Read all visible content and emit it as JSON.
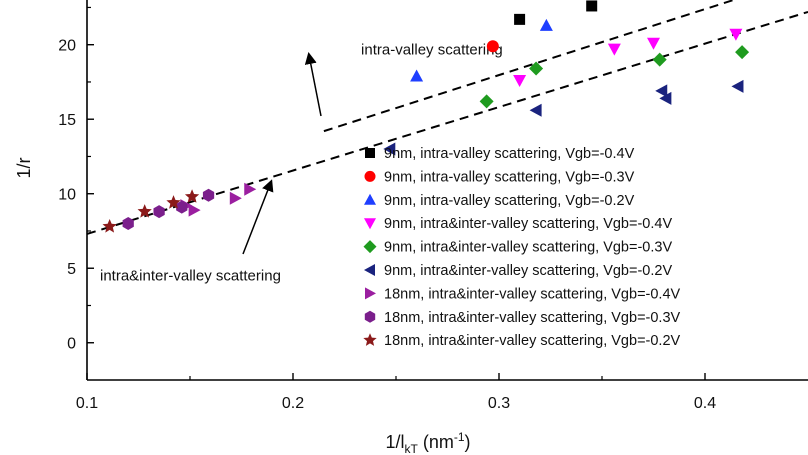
{
  "chart_data": {
    "type": "scatter",
    "xlabel": "1/l",
    "xlabel_sub": "kT",
    "xlabel_unit_open": " (nm",
    "xlabel_unit_sup": "-1",
    "xlabel_unit_close": ")",
    "ylabel": "1/r",
    "xlim": [
      0.1,
      0.45
    ],
    "ylim": [
      -2.5,
      23
    ],
    "x_ticks": [
      0.1,
      0.2,
      0.3,
      0.4
    ],
    "x_tick_labels": [
      "0.1",
      "0.2",
      "0.3",
      "0.4"
    ],
    "y_ticks": [
      0,
      5,
      10,
      15,
      20
    ],
    "y_tick_labels": [
      "0",
      "5",
      "10",
      "15",
      "20"
    ],
    "grid": false,
    "legend_position": "bottom-right",
    "annotations": [
      {
        "text": "intra-valley scattering",
        "x": 0.265,
        "y": 19.6
      },
      {
        "text": "intra&inter-valley scattering",
        "x": 0.155,
        "y": 4.5
      }
    ],
    "series": [
      {
        "name": "9nm, intra-valley scattering, Vgb=-0.4V",
        "marker": "square",
        "color": "#000000",
        "x": [
          0.31,
          0.345
        ],
        "y": [
          21.7,
          22.6
        ]
      },
      {
        "name": "9nm, intra-valley scattering, Vgb=-0.3V",
        "marker": "circle",
        "color": "#ff0000",
        "x": [
          0.297
        ],
        "y": [
          19.9
        ]
      },
      {
        "name": "9nm, intra-valley scattering, Vgb=-0.2V",
        "marker": "triangle-up",
        "color": "#1f3fff",
        "x": [
          0.26,
          0.323
        ],
        "y": [
          17.9,
          21.3
        ]
      },
      {
        "name": "9nm, intra&inter-valley scattering, Vgb=-0.4V",
        "marker": "triangle-down",
        "color": "#ff00ff",
        "x": [
          0.31,
          0.356,
          0.375,
          0.415
        ],
        "y": [
          17.6,
          19.7,
          20.1,
          20.7
        ]
      },
      {
        "name": "9nm, intra&inter-valley scattering, Vgb=-0.3V",
        "marker": "diamond",
        "color": "#1f9b1f",
        "x": [
          0.294,
          0.318,
          0.378,
          0.418
        ],
        "y": [
          16.2,
          18.4,
          19.0,
          19.5
        ]
      },
      {
        "name": "9nm, intra&inter-valley scattering, Vgb=-0.2V",
        "marker": "triangle-left",
        "color": "#1a237e",
        "x": [
          0.247,
          0.318,
          0.379,
          0.381,
          0.416
        ],
        "y": [
          13.0,
          15.6,
          16.9,
          16.4,
          17.2
        ]
      },
      {
        "name": "18nm, intra&inter-valley scattering, Vgb=-0.4V",
        "marker": "triangle-right",
        "color": "#9b1fa0",
        "x": [
          0.148,
          0.152,
          0.172,
          0.179
        ],
        "y": [
          9.2,
          8.9,
          9.7,
          10.3
        ]
      },
      {
        "name": "18nm, intra&inter-valley scattering, Vgb=-0.3V",
        "marker": "hexagon",
        "color": "#7b1f8c",
        "x": [
          0.12,
          0.135,
          0.146,
          0.159
        ],
        "y": [
          8.0,
          8.8,
          9.1,
          9.9
        ]
      },
      {
        "name": "18nm, intra&inter-valley scattering, Vgb=-0.2V",
        "marker": "star",
        "color": "#8b1a1a",
        "x": [
          0.111,
          0.128,
          0.142,
          0.151
        ],
        "y": [
          7.8,
          8.8,
          9.4,
          9.8
        ]
      }
    ],
    "fit_lines": [
      {
        "x": [
          0.215,
          0.45
        ],
        "y": [
          14.2,
          24.6
        ]
      },
      {
        "x": [
          0.1,
          0.45
        ],
        "y": [
          7.3,
          22.2
        ]
      }
    ]
  }
}
